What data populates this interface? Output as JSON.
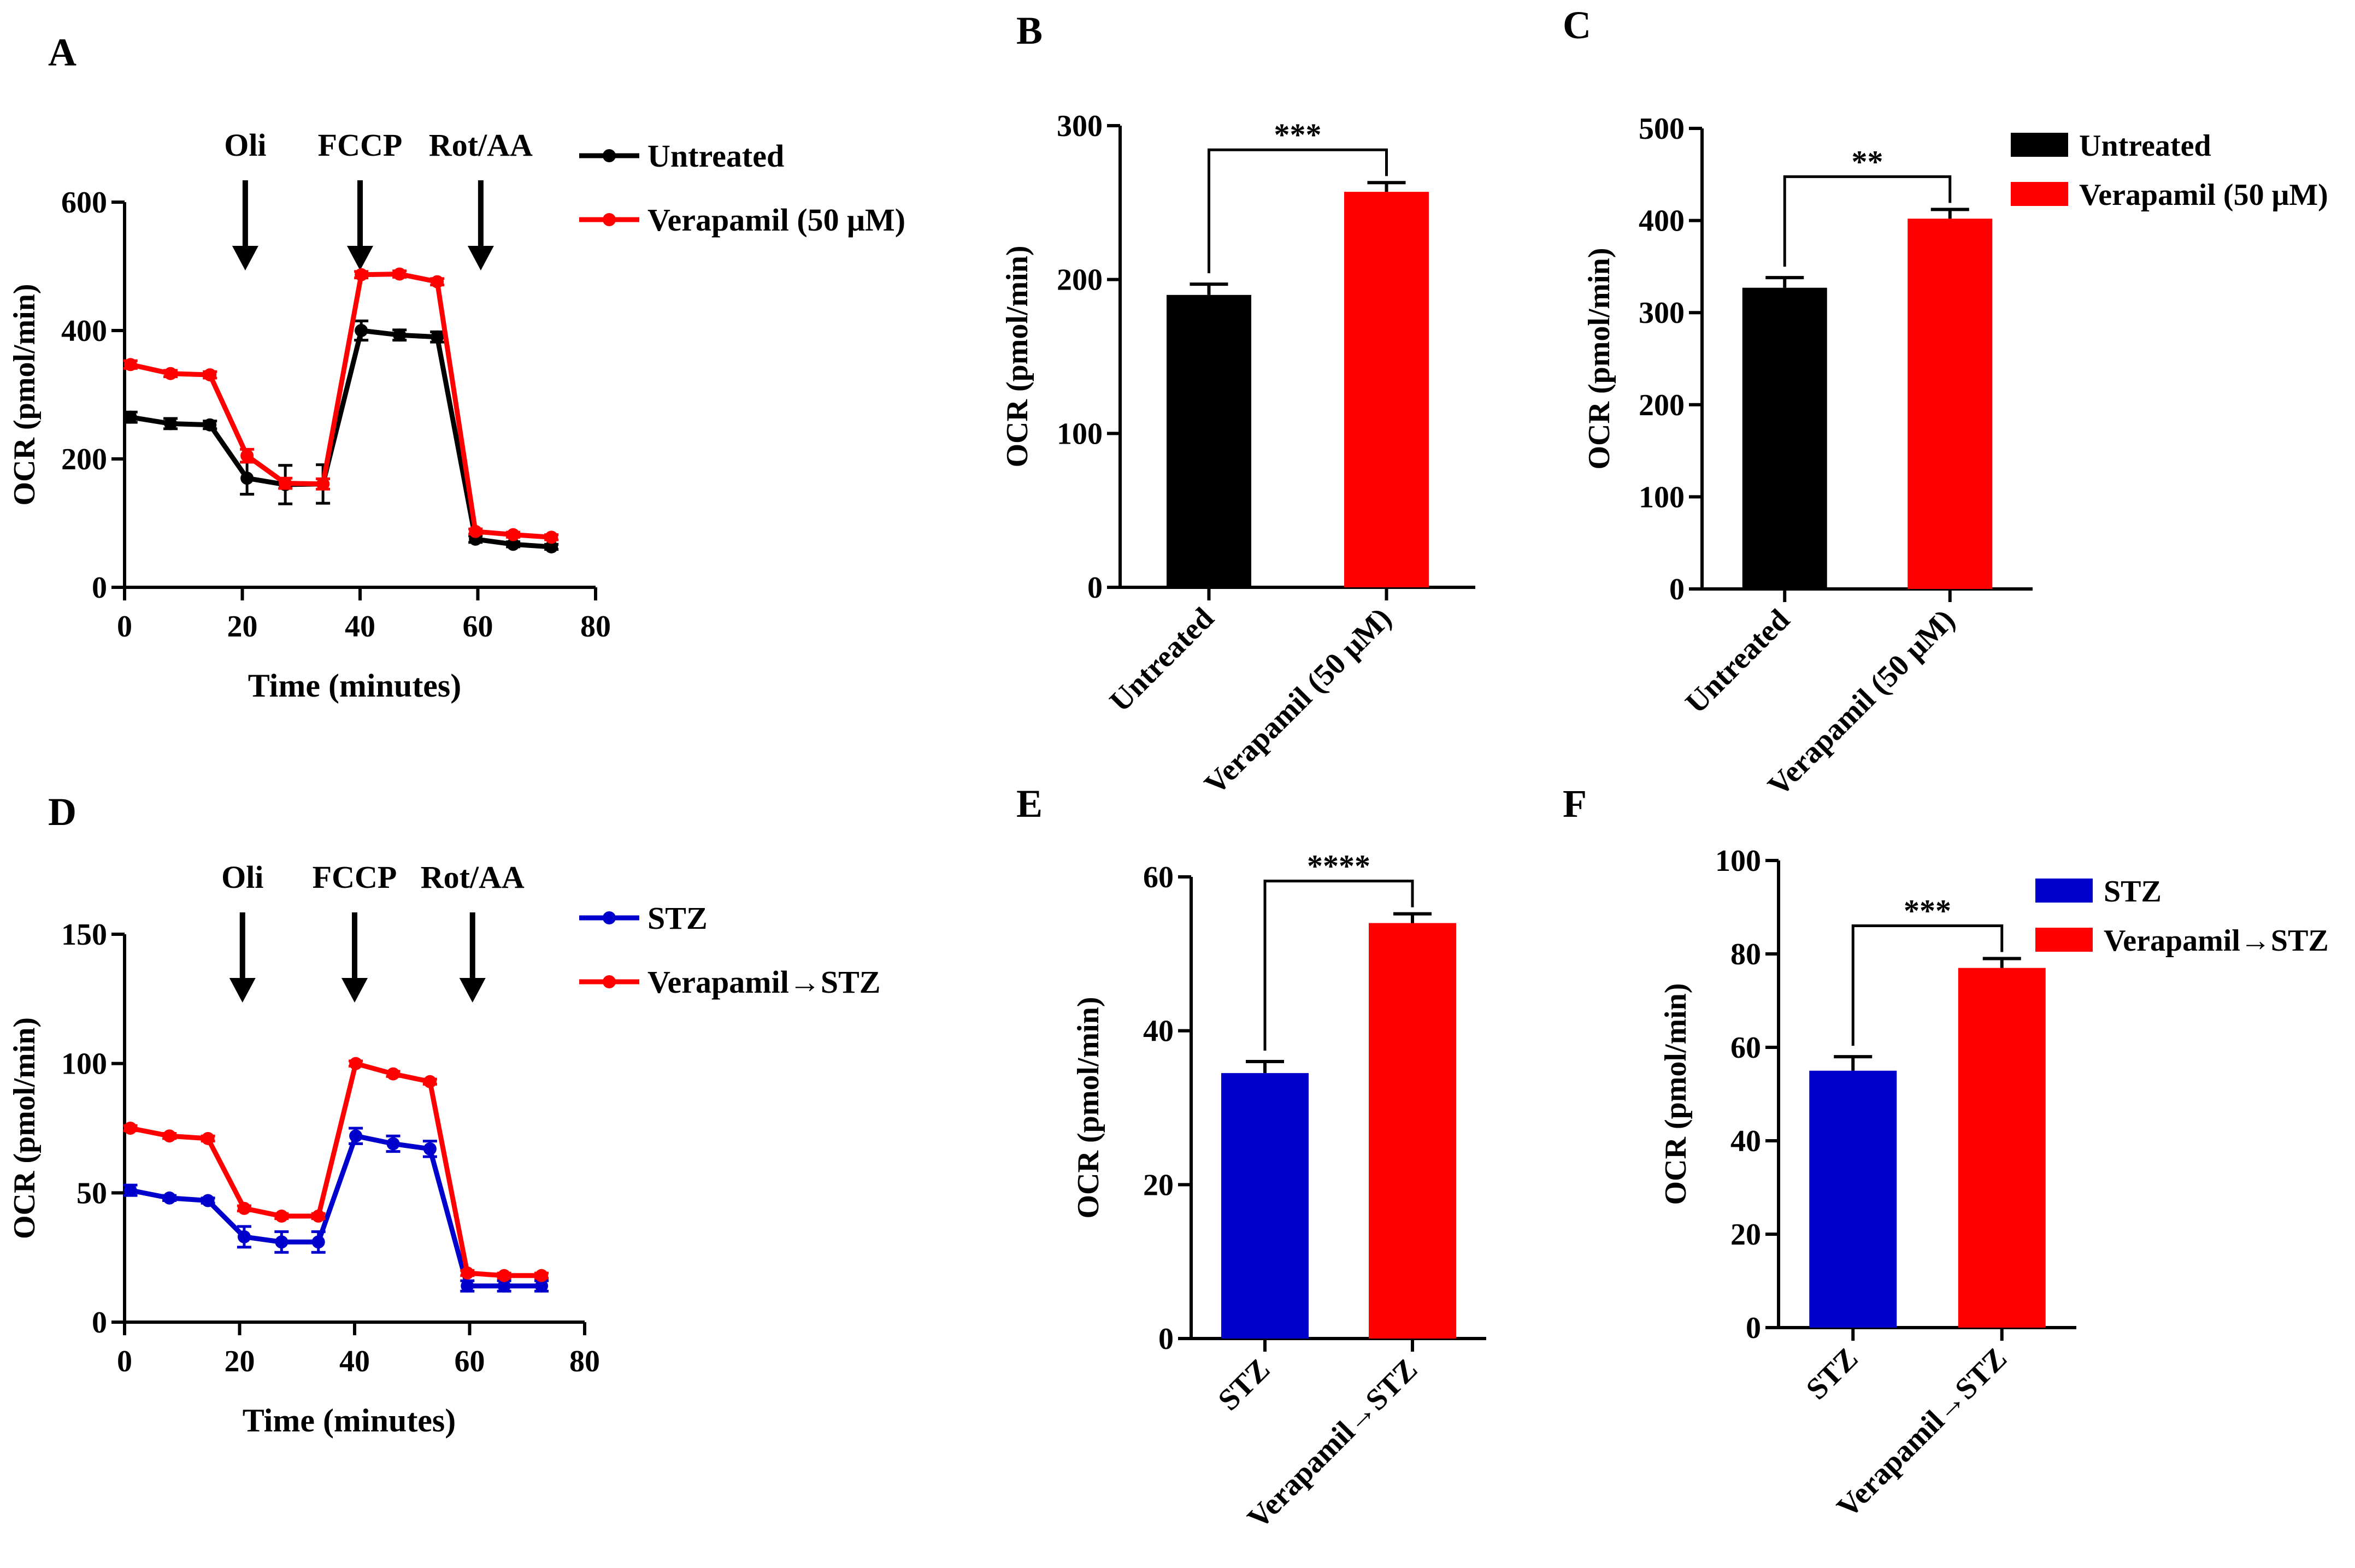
{
  "colors": {
    "black": "#000000",
    "red": "#ff0000",
    "blue": "#0000cc"
  },
  "chart_data": [
    {
      "id": "A",
      "panel_label": "A",
      "type": "line",
      "xlabel": "Time (minutes)",
      "ylabel": "OCR (pmol/min)",
      "xlim": [
        0,
        80
      ],
      "ylim": [
        0,
        600
      ],
      "xticks": [
        "0",
        "20",
        "40",
        "60",
        "80"
      ],
      "yticks": [
        "0",
        "200",
        "400",
        "600"
      ],
      "injections": [
        {
          "label": "Oli",
          "x": 20.5
        },
        {
          "label": "FCCP",
          "x": 40
        },
        {
          "label": "Rot/AA",
          "x": 60.5
        }
      ],
      "legend": [
        "Untreated",
        "Verapamil (50 μM)"
      ],
      "series": [
        {
          "name": "Untreated",
          "color": "#000000",
          "x": [
            1,
            7.8,
            14.5,
            20.8,
            27.3,
            33.7,
            40.2,
            46.7,
            53.1,
            59.6,
            66,
            72.5
          ],
          "y": [
            265,
            255,
            253,
            170,
            160,
            161,
            400,
            393,
            390,
            75,
            67,
            63
          ],
          "err": [
            8,
            8,
            6,
            25,
            30,
            30,
            15,
            8,
            8,
            5,
            4,
            4
          ]
        },
        {
          "name": "Verapamil (50 μM)",
          "color": "#ff0000",
          "x": [
            1,
            7.8,
            14.5,
            20.8,
            27.3,
            33.7,
            40.2,
            46.7,
            53.1,
            59.6,
            66,
            72.5
          ],
          "y": [
            347,
            333,
            331,
            205,
            162,
            161,
            487,
            488,
            476,
            87,
            82,
            78
          ],
          "err": [
            6,
            5,
            5,
            10,
            8,
            8,
            5,
            5,
            5,
            4,
            4,
            4
          ]
        }
      ]
    },
    {
      "id": "B",
      "panel_label": "B",
      "type": "bar",
      "ylabel": "OCR (pmol/min)",
      "ylim": [
        0,
        300
      ],
      "yticks": [
        "0",
        "100",
        "200",
        "300"
      ],
      "categories": [
        "Untreated",
        "Verapamil (50 μM)"
      ],
      "values": [
        190,
        257
      ],
      "errors": [
        7,
        6
      ],
      "bar_colors": [
        "#000000",
        "#ff0000"
      ],
      "significance": "***"
    },
    {
      "id": "C",
      "panel_label": "C",
      "type": "bar",
      "ylabel": "OCR (pmol/min)",
      "ylim": [
        0,
        500
      ],
      "yticks": [
        "0",
        "100",
        "200",
        "300",
        "400",
        "500"
      ],
      "categories": [
        "Untreated",
        "Verapamil (50 μM)"
      ],
      "values": [
        327,
        402
      ],
      "errors": [
        11,
        10
      ],
      "bar_colors": [
        "#000000",
        "#ff0000"
      ],
      "significance": "**",
      "legend": [
        "Untreated",
        "Verapamil (50 μM)"
      ]
    },
    {
      "id": "D",
      "panel_label": "D",
      "type": "line",
      "xlabel": "Time (minutes)",
      "ylabel": "OCR (pmol/min)",
      "xlim": [
        0,
        80
      ],
      "ylim": [
        0,
        150
      ],
      "xticks": [
        "0",
        "20",
        "40",
        "60",
        "80"
      ],
      "yticks": [
        "0",
        "50",
        "100",
        "150"
      ],
      "injections": [
        {
          "label": "Oli",
          "x": 20.5
        },
        {
          "label": "FCCP",
          "x": 40
        },
        {
          "label": "Rot/AA",
          "x": 60.5
        }
      ],
      "legend": [
        "STZ",
        "Verapamil→STZ"
      ],
      "series": [
        {
          "name": "STZ",
          "color": "#0000cc",
          "x": [
            1,
            7.8,
            14.5,
            20.8,
            27.3,
            33.7,
            40.2,
            46.7,
            53.1,
            59.6,
            66,
            72.5
          ],
          "y": [
            51,
            48,
            47,
            33,
            31,
            31,
            72,
            69,
            67,
            14,
            14,
            14
          ],
          "err": [
            2,
            1,
            1,
            4,
            4,
            4,
            3,
            3,
            3,
            2,
            2,
            2
          ]
        },
        {
          "name": "Verapamil→STZ",
          "color": "#ff0000",
          "x": [
            1,
            7.8,
            14.5,
            20.8,
            27.3,
            33.7,
            40.2,
            46.7,
            53.1,
            59.6,
            66,
            72.5
          ],
          "y": [
            75,
            72,
            71,
            44,
            41,
            41,
            100,
            96,
            93,
            19,
            18,
            18
          ],
          "err": [
            1,
            1,
            1,
            1,
            1,
            1,
            1,
            1,
            1,
            1,
            1,
            1
          ]
        }
      ]
    },
    {
      "id": "E",
      "panel_label": "E",
      "type": "bar",
      "ylabel": "OCR (pmol/min)",
      "ylim": [
        0,
        60
      ],
      "yticks": [
        "0",
        "20",
        "40",
        "60"
      ],
      "categories": [
        "STZ",
        "Verapamil→STZ"
      ],
      "values": [
        34.5,
        54
      ],
      "errors": [
        1.5,
        1.2
      ],
      "bar_colors": [
        "#0000cc",
        "#ff0000"
      ],
      "significance": "****"
    },
    {
      "id": "F",
      "panel_label": "F",
      "type": "bar",
      "ylabel": "OCR (pmol/min)",
      "ylim": [
        0,
        100
      ],
      "yticks": [
        "0",
        "20",
        "40",
        "60",
        "80",
        "100"
      ],
      "categories": [
        "STZ",
        "Verapamil→STZ"
      ],
      "values": [
        55,
        77
      ],
      "errors": [
        3,
        2
      ],
      "bar_colors": [
        "#0000cc",
        "#ff0000"
      ],
      "significance": "***",
      "legend": [
        "STZ",
        "Verapamil→STZ"
      ]
    }
  ]
}
